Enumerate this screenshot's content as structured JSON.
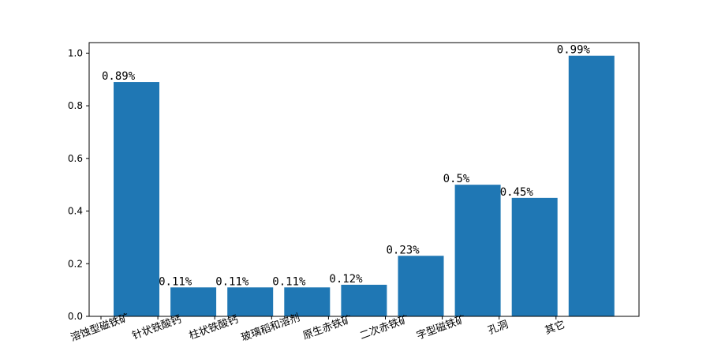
{
  "chart_data": {
    "type": "bar",
    "categories": [
      "溶蚀型磁铁矿",
      "针状铁酸钙",
      "柱状铁酸钙",
      "玻璃稻和溶剂",
      "原生赤铁矿",
      "二次赤铁矿",
      "字型磁铁矿",
      "孔洞",
      "其它"
    ],
    "values": [
      0.89,
      0.11,
      0.11,
      0.11,
      0.12,
      0.23,
      0.5,
      0.45,
      0.99
    ],
    "data_labels": [
      "0.89%",
      "0.11%",
      "0.11%",
      "0.11%",
      "0.12%",
      "0.23%",
      "0.5%",
      "0.45%",
      "0.99%"
    ],
    "ylim": [
      0,
      1.04
    ],
    "yticks": [
      "0.0",
      "0.2",
      "0.4",
      "0.6",
      "0.8",
      "1.0"
    ],
    "ytick_values": [
      0,
      0.2,
      0.4,
      0.6,
      0.8,
      1.0
    ],
    "grid": false,
    "bar_color": "#1f77b4"
  }
}
